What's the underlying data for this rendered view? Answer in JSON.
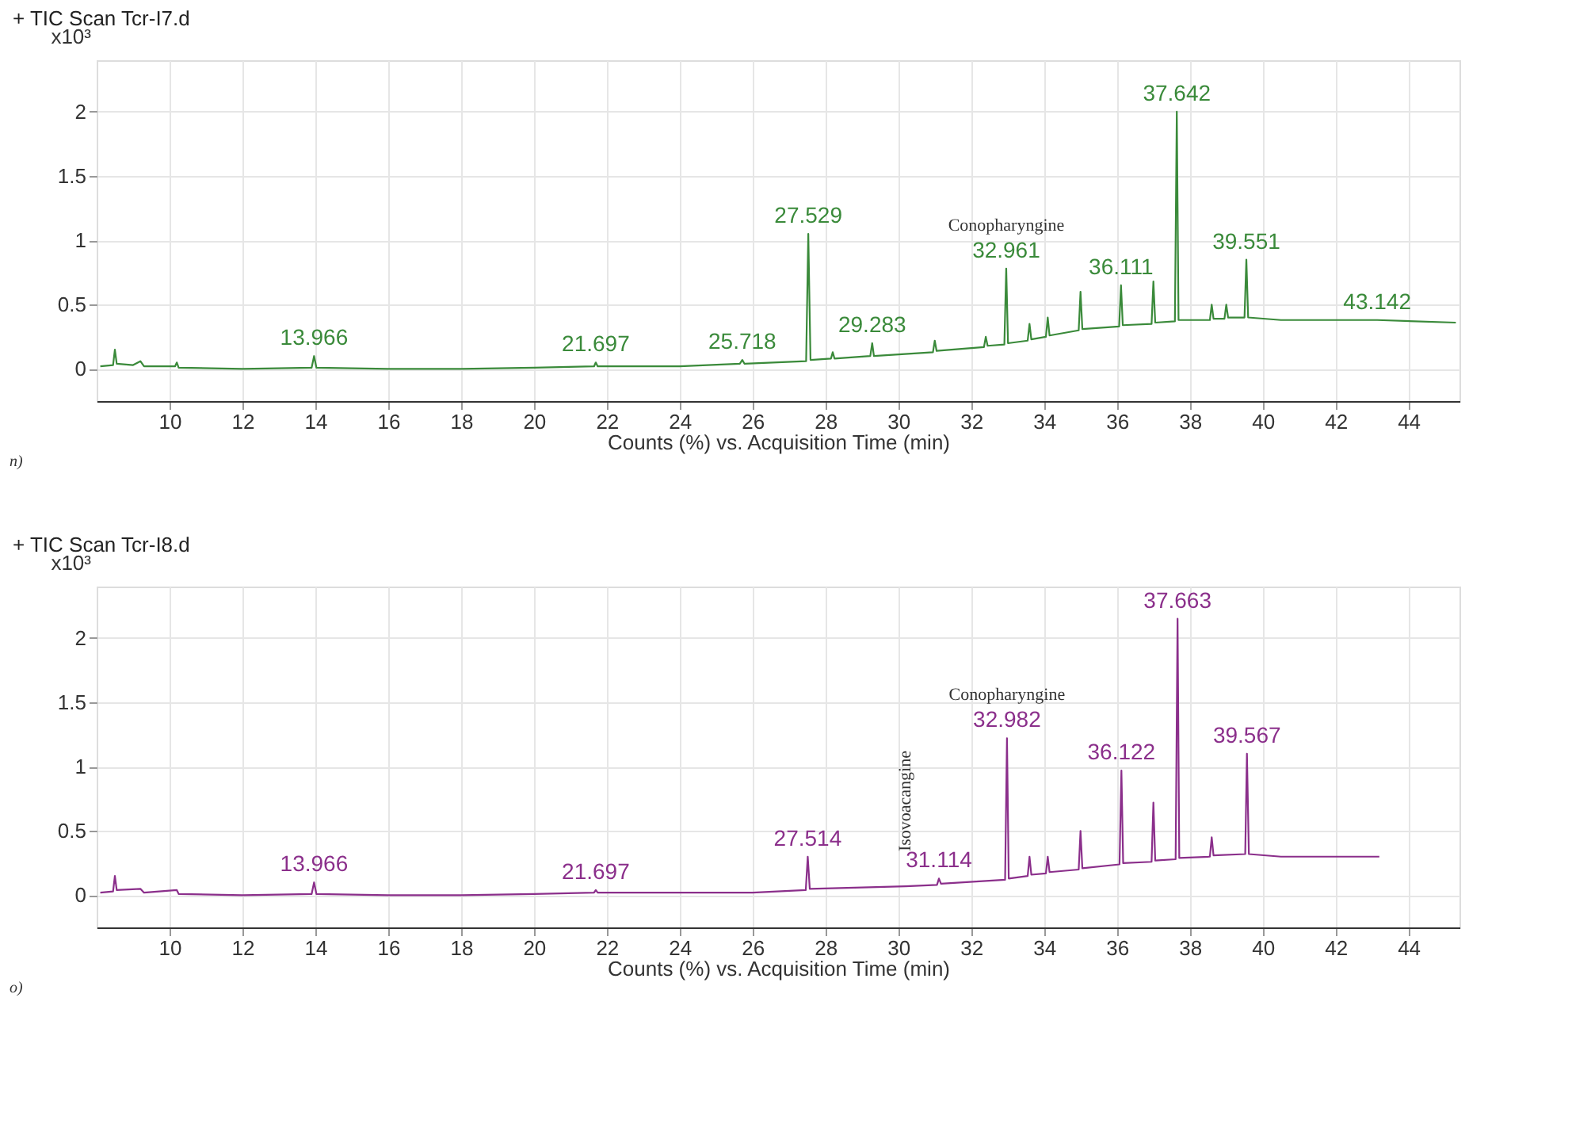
{
  "chart_data": [
    {
      "type": "line",
      "title": "+ TIC Scan Tcr-I7.d",
      "xlabel": "Counts (%) vs. Acquisition Time (min)",
      "ylabel": "x10³",
      "x": [
        8.1,
        8.45,
        8.5,
        8.55,
        9.0,
        9.2,
        9.3,
        10.15,
        10.2,
        10.25,
        12,
        13.9,
        13.966,
        14.03,
        16,
        18,
        20,
        21.65,
        21.697,
        21.75,
        24,
        25.65,
        25.718,
        25.78,
        27.47,
        27.529,
        27.59,
        28.15,
        28.2,
        28.25,
        29.23,
        29.283,
        29.33,
        30.95,
        31.0,
        31.05,
        32.35,
        32.4,
        32.45,
        32.91,
        32.961,
        33.01,
        33.55,
        33.6,
        33.65,
        34.05,
        34.1,
        34.15,
        34.95,
        35.0,
        35.05,
        36.06,
        36.111,
        36.16,
        36.95,
        37.0,
        37.05,
        37.59,
        37.642,
        37.69,
        38.55,
        38.6,
        38.65,
        38.95,
        39.0,
        39.05,
        39.5,
        39.551,
        39.6,
        40.5,
        43.142,
        45.3
      ],
      "series": [
        {
          "color": "#3a8a3a",
          "values": [
            0.02,
            0.03,
            0.15,
            0.04,
            0.03,
            0.06,
            0.02,
            0.02,
            0.05,
            0.01,
            0.0,
            0.01,
            0.1,
            0.01,
            0.0,
            0.0,
            0.01,
            0.02,
            0.05,
            0.02,
            0.02,
            0.04,
            0.07,
            0.04,
            0.06,
            1.05,
            0.07,
            0.08,
            0.13,
            0.08,
            0.1,
            0.2,
            0.1,
            0.13,
            0.22,
            0.14,
            0.17,
            0.25,
            0.18,
            0.19,
            0.78,
            0.2,
            0.22,
            0.35,
            0.23,
            0.25,
            0.4,
            0.26,
            0.3,
            0.6,
            0.31,
            0.33,
            0.65,
            0.34,
            0.35,
            0.68,
            0.36,
            0.37,
            2.0,
            0.38,
            0.38,
            0.5,
            0.39,
            0.39,
            0.5,
            0.4,
            0.4,
            0.85,
            0.4,
            0.38,
            0.38,
            0.36
          ]
        }
      ],
      "xlim": [
        8,
        45.4
      ],
      "xticks": [
        10,
        12,
        14,
        16,
        18,
        20,
        22,
        24,
        26,
        28,
        30,
        32,
        34,
        36,
        38,
        40,
        42,
        44
      ],
      "ylim": [
        -0.25,
        2.4
      ],
      "yticks": [
        0,
        0.5,
        1,
        1.5,
        2
      ],
      "grid": true,
      "marker": "none",
      "line_style": "solid",
      "annotations": [
        "n)",
        {
          "text": "13.966",
          "x": 13.966,
          "y": 0.1
        },
        {
          "text": "21.697",
          "x": 21.697,
          "y": 0.05
        },
        {
          "text": "25.718",
          "x": 25.718,
          "y": 0.07
        },
        {
          "text": "27.529",
          "x": 27.529,
          "y": 1.05
        },
        {
          "text": "29.283",
          "x": 29.283,
          "y": 0.2
        },
        {
          "text": "Conopharyngine",
          "x": 32.961,
          "y": 0.78
        },
        {
          "text": "32.961",
          "x": 32.961,
          "y": 0.78
        },
        {
          "text": "36.111",
          "x": 36.111,
          "y": 0.65
        },
        {
          "text": "37.642",
          "x": 37.642,
          "y": 2.0
        },
        {
          "text": "39.551",
          "x": 39.551,
          "y": 0.85
        },
        {
          "text": "43.142",
          "x": 43.142,
          "y": 0.38
        }
      ]
    },
    {
      "type": "line",
      "title": "+ TIC Scan Tcr-I8.d",
      "xlabel": "Counts (%) vs. Acquisition Time (min)",
      "ylabel": "x10³",
      "x": [
        8.1,
        8.45,
        8.5,
        8.55,
        9.2,
        9.3,
        10.2,
        10.25,
        12,
        13.9,
        13.966,
        14.03,
        16,
        18,
        20,
        21.65,
        21.697,
        21.75,
        24,
        26,
        27.46,
        27.514,
        27.57,
        29,
        30.2,
        31.06,
        31.114,
        31.17,
        32.93,
        32.982,
        33.03,
        33.55,
        33.6,
        33.65,
        34.05,
        34.1,
        34.15,
        34.95,
        35.0,
        35.05,
        36.07,
        36.122,
        36.17,
        36.95,
        37.0,
        37.05,
        37.61,
        37.663,
        37.71,
        38.55,
        38.6,
        38.65,
        39.52,
        39.567,
        39.62,
        40.5,
        43.2
      ],
      "series": [
        {
          "color": "#8b2f8b",
          "values": [
            0.02,
            0.03,
            0.15,
            0.04,
            0.05,
            0.02,
            0.04,
            0.01,
            0.0,
            0.01,
            0.1,
            0.01,
            0.0,
            0.0,
            0.01,
            0.02,
            0.04,
            0.02,
            0.02,
            0.02,
            0.04,
            0.3,
            0.05,
            0.06,
            0.07,
            0.08,
            0.13,
            0.09,
            0.12,
            1.22,
            0.13,
            0.15,
            0.3,
            0.16,
            0.17,
            0.3,
            0.18,
            0.2,
            0.5,
            0.21,
            0.24,
            0.97,
            0.25,
            0.26,
            0.72,
            0.27,
            0.28,
            2.15,
            0.29,
            0.3,
            0.45,
            0.31,
            0.32,
            1.1,
            0.32,
            0.3,
            0.3
          ]
        }
      ],
      "xlim": [
        8,
        45.4
      ],
      "xticks": [
        10,
        12,
        14,
        16,
        18,
        20,
        22,
        24,
        26,
        28,
        30,
        32,
        34,
        36,
        38,
        40,
        42,
        44
      ],
      "ylim": [
        -0.25,
        2.4
      ],
      "yticks": [
        0,
        0.5,
        1,
        1.5,
        2
      ],
      "grid": true,
      "marker": "none",
      "line_style": "solid",
      "annotations": [
        "o)",
        {
          "text": "13.966",
          "x": 13.966,
          "y": 0.1
        },
        {
          "text": "21.697",
          "x": 21.697,
          "y": 0.04
        },
        {
          "text": "27.514",
          "x": 27.514,
          "y": 0.3
        },
        {
          "text": "Isovoacangine",
          "x": 30.2,
          "y": 0.07
        },
        {
          "text": "31.114",
          "x": 31.114,
          "y": 0.13
        },
        {
          "text": "Conopharyngine",
          "x": 32.982,
          "y": 1.22
        },
        {
          "text": "32.982",
          "x": 32.982,
          "y": 1.22
        },
        {
          "text": "36.122",
          "x": 36.122,
          "y": 0.97
        },
        {
          "text": "37.663",
          "x": 37.663,
          "y": 2.15
        },
        {
          "text": "39.567",
          "x": 39.567,
          "y": 1.1
        }
      ]
    }
  ]
}
